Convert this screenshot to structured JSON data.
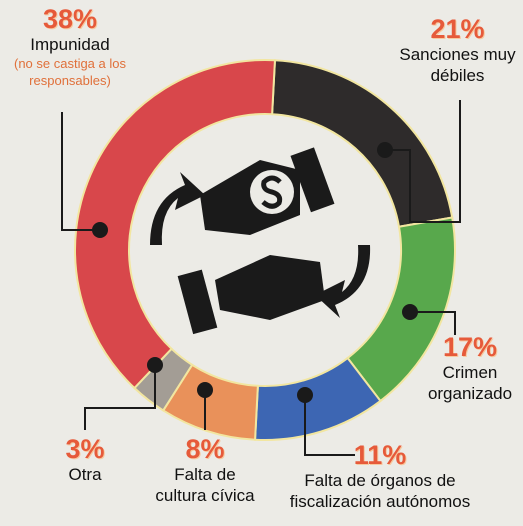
{
  "chart_data": {
    "type": "donut",
    "categories": [
      "Sanciones muy débiles",
      "Crimen organizado",
      "Falta de órganos de fiscalización autónomos",
      "Falta de cultura cívica",
      "Otra",
      "Impunidad"
    ],
    "values": [
      21,
      17,
      11,
      8,
      3,
      38
    ],
    "value_labels": [
      "21%",
      "17%",
      "11%",
      "8%",
      "3%",
      "38%"
    ],
    "colors": [
      "#2e2b2b",
      "#58a84c",
      "#3d66b3",
      "#e9915a",
      "#a39d95",
      "#d8474b"
    ],
    "annotations": [
      "(no se castiga a los responsables)"
    ]
  }
}
